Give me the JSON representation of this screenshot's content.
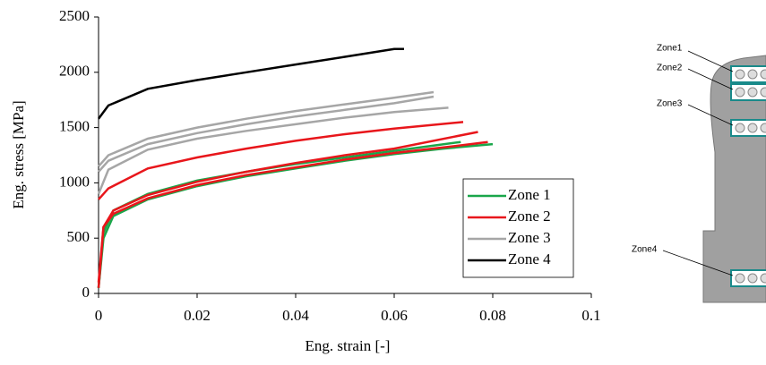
{
  "chart_data": {
    "type": "line",
    "xlabel": "Eng. strain [-]",
    "ylabel": "Eng. stress [MPa]",
    "xlim": [
      0,
      0.1
    ],
    "xticks": [
      0,
      0.02,
      0.04,
      0.06,
      0.08,
      0.1
    ],
    "ylim": [
      0,
      2500
    ],
    "yticks": [
      0,
      500,
      1000,
      1500,
      2000,
      2500
    ],
    "grid": false,
    "legend": "lower right",
    "series": [
      {
        "name": "Zone 1",
        "color": "#1aa64a",
        "curves": [
          {
            "x": [
              0,
              0.001,
              0.003,
              0.01,
              0.02,
              0.03,
              0.04,
              0.05,
              0.06,
              0.0735
            ],
            "values": [
              50,
              550,
              750,
              900,
              1020,
              1100,
              1170,
              1230,
              1290,
              1370
            ]
          },
          {
            "x": [
              0,
              0.001,
              0.003,
              0.01,
              0.02,
              0.03,
              0.04,
              0.05,
              0.06,
              0.07,
              0.08
            ],
            "values": [
              50,
              500,
              700,
              850,
              970,
              1060,
              1130,
              1200,
              1260,
              1310,
              1350
            ]
          }
        ]
      },
      {
        "name": "Zone 2",
        "color": "#e8161b",
        "curves": [
          {
            "x": [
              0,
              0.002,
              0.01,
              0.02,
              0.03,
              0.04,
              0.05,
              0.06,
              0.074
            ],
            "values": [
              850,
              950,
              1130,
              1230,
              1310,
              1380,
              1440,
              1490,
              1550
            ]
          },
          {
            "x": [
              0,
              0.001,
              0.003,
              0.01,
              0.02,
              0.03,
              0.04,
              0.05,
              0.06,
              0.077
            ],
            "values": [
              100,
              600,
              750,
              890,
              1010,
              1100,
              1180,
              1250,
              1310,
              1460
            ]
          },
          {
            "x": [
              0,
              0.001,
              0.003,
              0.01,
              0.02,
              0.03,
              0.04,
              0.05,
              0.06,
              0.07,
              0.079
            ],
            "values": [
              50,
              600,
              720,
              860,
              980,
              1070,
              1140,
              1210,
              1270,
              1320,
              1370
            ]
          }
        ]
      },
      {
        "name": "Zone 3",
        "color": "#a6a6a6",
        "curves": [
          {
            "x": [
              0,
              0.002,
              0.01,
              0.02,
              0.03,
              0.04,
              0.05,
              0.06,
              0.068
            ],
            "values": [
              1150,
              1250,
              1400,
              1500,
              1580,
              1650,
              1710,
              1770,
              1820
            ]
          },
          {
            "x": [
              0,
              0.002,
              0.01,
              0.02,
              0.03,
              0.04,
              0.05,
              0.06,
              0.068
            ],
            "values": [
              1100,
              1200,
              1350,
              1450,
              1530,
              1600,
              1660,
              1720,
              1780
            ]
          },
          {
            "x": [
              0,
              0.002,
              0.01,
              0.02,
              0.03,
              0.04,
              0.05,
              0.06,
              0.071
            ],
            "values": [
              900,
              1120,
              1300,
              1400,
              1470,
              1530,
              1590,
              1640,
              1680
            ]
          }
        ]
      },
      {
        "name": "Zone 4",
        "color": "#000000",
        "curves": [
          {
            "x": [
              0,
              0.002,
              0.01,
              0.02,
              0.03,
              0.04,
              0.05,
              0.06,
              0.062
            ],
            "values": [
              1580,
              1700,
              1850,
              1930,
              2000,
              2070,
              2140,
              2210,
              2210
            ]
          }
        ]
      }
    ]
  },
  "diagram": {
    "labels": [
      "Zone1",
      "Zone2",
      "Zone3",
      "Zone4"
    ]
  }
}
